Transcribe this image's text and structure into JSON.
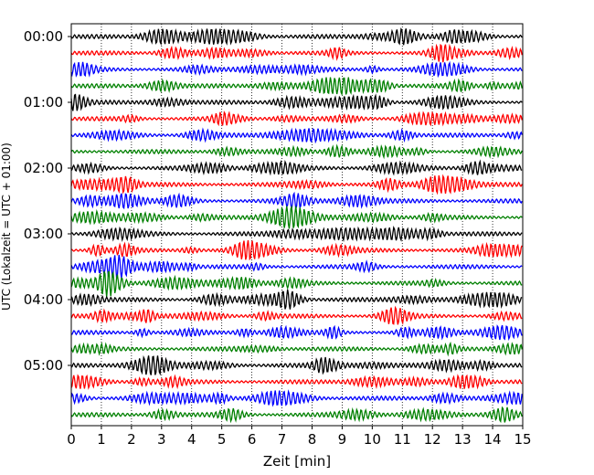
{
  "chart_data": {
    "type": "line",
    "title": "",
    "xlabel": "Zeit  [min]",
    "ylabel": "UTC (Lokalzeit = UTC + 01:00)",
    "xlim": [
      0,
      15
    ],
    "x_ticks": [
      "0",
      "1",
      "2",
      "3",
      "4",
      "5",
      "6",
      "7",
      "8",
      "9",
      "10",
      "11",
      "12",
      "13",
      "14",
      "15"
    ],
    "y_tick_labels": [
      "00:00",
      "01:00",
      "02:00",
      "03:00",
      "04:00",
      "05:00"
    ],
    "grid": "vertical dotted lines at each minute",
    "trace_count": 24,
    "trace_interval_minutes": 15,
    "trace_colors": [
      "#000000",
      "#ff0000",
      "#0000ff",
      "#008000"
    ]
  }
}
